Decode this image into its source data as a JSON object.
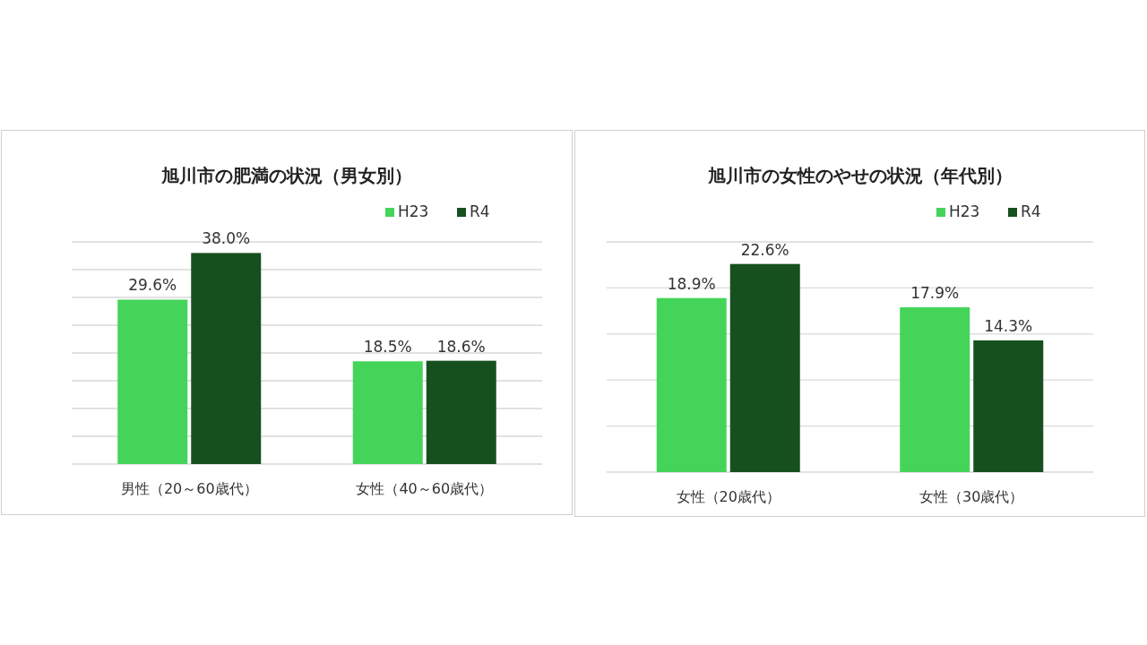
{
  "chart_data": [
    {
      "type": "bar",
      "title": "旭川市の肥満の状況（男女別）",
      "categories": [
        "男性（20～60歳代）",
        "女性（40～60歳代）"
      ],
      "series": [
        {
          "name": "H23",
          "color": "#44d45a",
          "values": [
            29.6,
            18.5
          ],
          "value_labels": [
            "29.6%",
            "18.5%"
          ]
        },
        {
          "name": "R4",
          "color": "#16501e",
          "values": [
            38.0,
            18.6
          ],
          "value_labels": [
            "38.0%",
            "18.6%"
          ]
        }
      ],
      "ylim": [
        0,
        40
      ],
      "yticks": [
        {
          "value": 0,
          "label": null
        },
        {
          "value": 5,
          "label": null
        },
        {
          "value": 10,
          "label": null
        },
        {
          "value": 15,
          "label": null
        },
        {
          "value": 20,
          "label": null
        },
        {
          "value": 25,
          "label": null
        },
        {
          "value": 30,
          "label": null
        },
        {
          "value": 35,
          "label": null
        },
        {
          "value": 40,
          "label": null
        }
      ],
      "grid": "y",
      "legend": "top right",
      "tick_labels": "x"
    },
    {
      "type": "bar",
      "title": "旭川市の女性のやせの状況（年代別）",
      "categories": [
        "女性（20歳代）",
        "女性（30歳代）"
      ],
      "series": [
        {
          "name": "H23",
          "color": "#44d45a",
          "values": [
            18.9,
            17.9
          ],
          "value_labels": [
            "18.9%",
            "17.9%"
          ]
        },
        {
          "name": "R4",
          "color": "#16501e",
          "values": [
            22.6,
            14.3
          ],
          "value_labels": [
            "22.6%",
            "14.3%"
          ]
        }
      ],
      "ylim": [
        0,
        25
      ],
      "yticks": [
        {
          "value": 0,
          "label": null
        },
        {
          "value": 5,
          "label": null
        },
        {
          "value": 10,
          "label": null
        },
        {
          "value": 15,
          "label": null
        },
        {
          "value": 20,
          "label": null
        },
        {
          "value": 25,
          "label": null
        }
      ],
      "grid": "y",
      "legend": "top right",
      "tick_labels": "x"
    }
  ]
}
